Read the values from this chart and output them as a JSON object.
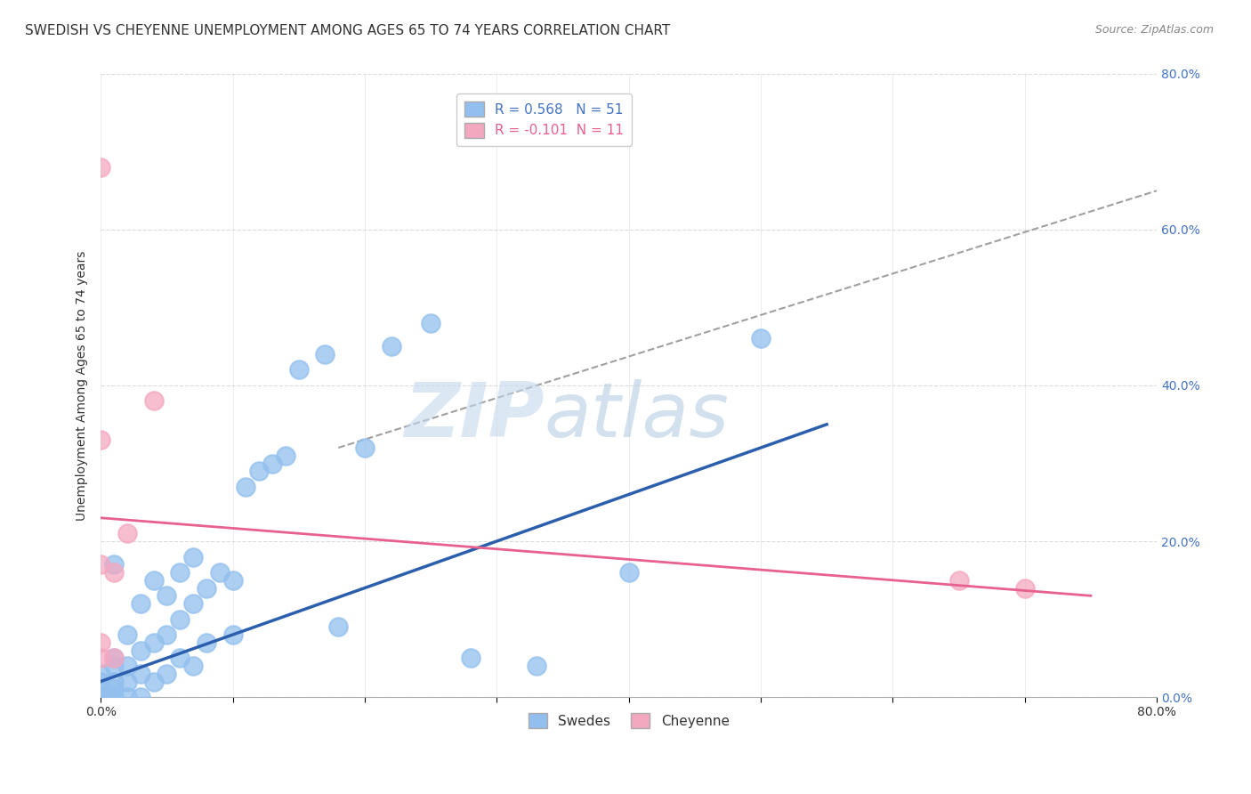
{
  "title": "SWEDISH VS CHEYENNE UNEMPLOYMENT AMONG AGES 65 TO 74 YEARS CORRELATION CHART",
  "source": "Source: ZipAtlas.com",
  "ylabel": "Unemployment Among Ages 65 to 74 years",
  "xlim": [
    0,
    0.8
  ],
  "ylim": [
    0,
    0.8
  ],
  "legend_blue_label": "R = 0.568   N = 51",
  "legend_pink_label": "R = -0.101  N = 11",
  "swedes_color": "#92bfed",
  "cheyenne_color": "#f4a8c0",
  "blue_line_color": "#2b5fad",
  "pink_line_color": "#e86090",
  "dashed_line_color": "#a0a0a0",
  "watermark_zip": "ZIP",
  "watermark_atlas": "atlas",
  "watermark_color_zip": "#c8d8ee",
  "watermark_color_atlas": "#b8cce4",
  "title_fontsize": 11,
  "axis_label_fontsize": 10,
  "tick_fontsize": 10,
  "swedes_x": [
    0.0,
    0.0,
    0.0,
    0.0,
    0.0,
    0.01,
    0.01,
    0.01,
    0.01,
    0.01,
    0.01,
    0.01,
    0.02,
    0.02,
    0.02,
    0.02,
    0.03,
    0.03,
    0.03,
    0.03,
    0.04,
    0.04,
    0.04,
    0.05,
    0.05,
    0.05,
    0.06,
    0.06,
    0.06,
    0.07,
    0.07,
    0.07,
    0.08,
    0.08,
    0.09,
    0.1,
    0.1,
    0.11,
    0.12,
    0.13,
    0.14,
    0.15,
    0.17,
    0.18,
    0.2,
    0.22,
    0.25,
    0.28,
    0.33,
    0.4,
    0.5
  ],
  "swedes_y": [
    0.0,
    0.0,
    0.01,
    0.02,
    0.03,
    0.0,
    0.0,
    0.01,
    0.02,
    0.04,
    0.05,
    0.17,
    0.0,
    0.02,
    0.04,
    0.08,
    0.0,
    0.03,
    0.06,
    0.12,
    0.02,
    0.07,
    0.15,
    0.03,
    0.08,
    0.13,
    0.05,
    0.1,
    0.16,
    0.04,
    0.12,
    0.18,
    0.07,
    0.14,
    0.16,
    0.08,
    0.15,
    0.27,
    0.29,
    0.3,
    0.31,
    0.42,
    0.44,
    0.09,
    0.32,
    0.45,
    0.48,
    0.05,
    0.04,
    0.16,
    0.46
  ],
  "cheyenne_x": [
    0.0,
    0.0,
    0.0,
    0.0,
    0.0,
    0.01,
    0.01,
    0.02,
    0.04,
    0.65,
    0.7
  ],
  "cheyenne_y": [
    0.05,
    0.07,
    0.17,
    0.33,
    0.68,
    0.05,
    0.16,
    0.21,
    0.38,
    0.15,
    0.14
  ],
  "blue_trend_x": [
    0.0,
    0.55
  ],
  "blue_trend_y": [
    0.02,
    0.35
  ],
  "pink_trend_x": [
    0.0,
    0.75
  ],
  "pink_trend_y": [
    0.23,
    0.13
  ],
  "dashed_trend_x": [
    0.18,
    0.8
  ],
  "dashed_trend_y": [
    0.32,
    0.65
  ]
}
